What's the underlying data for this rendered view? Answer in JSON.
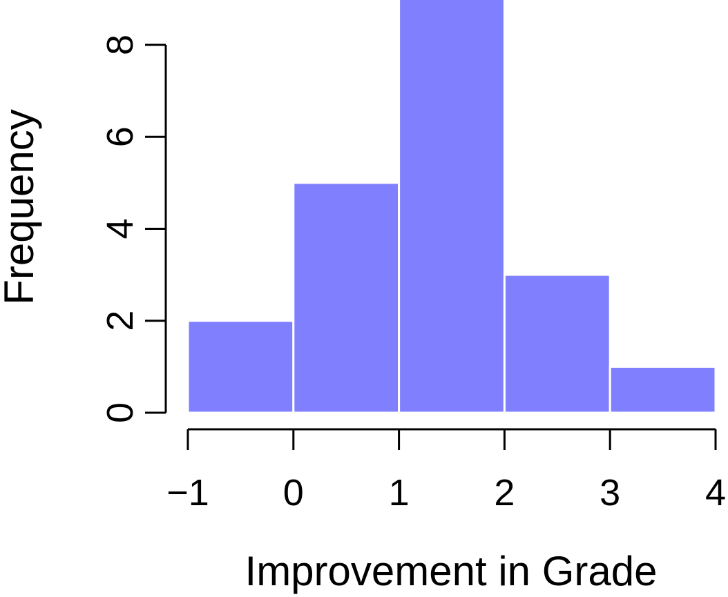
{
  "chart_data": {
    "type": "bar",
    "subtype": "histogram",
    "title": "",
    "xlabel": "Improvement in Grade",
    "ylabel": "Frequency",
    "bins": [
      {
        "from": -1,
        "to": 0,
        "count": 2
      },
      {
        "from": 0,
        "to": 1,
        "count": 5
      },
      {
        "from": 1,
        "to": 2,
        "count": 9
      },
      {
        "from": 2,
        "to": 3,
        "count": 3
      },
      {
        "from": 3,
        "to": 4,
        "count": 1
      }
    ],
    "xlim": [
      -1,
      4
    ],
    "ylim": [
      0,
      9
    ],
    "x_ticks": [
      {
        "value": -1,
        "label": "−1"
      },
      {
        "value": 0,
        "label": "0"
      },
      {
        "value": 1,
        "label": "1"
      },
      {
        "value": 2,
        "label": "2"
      },
      {
        "value": 3,
        "label": "3"
      },
      {
        "value": 4,
        "label": "4"
      }
    ],
    "y_ticks": [
      {
        "value": 0,
        "label": "0"
      },
      {
        "value": 2,
        "label": "2"
      },
      {
        "value": 4,
        "label": "4"
      },
      {
        "value": 6,
        "label": "6"
      },
      {
        "value": 8,
        "label": "8"
      }
    ],
    "grid": false,
    "legend": "none",
    "bar_color": "#8080ff",
    "edge_color": "#ffffff"
  }
}
